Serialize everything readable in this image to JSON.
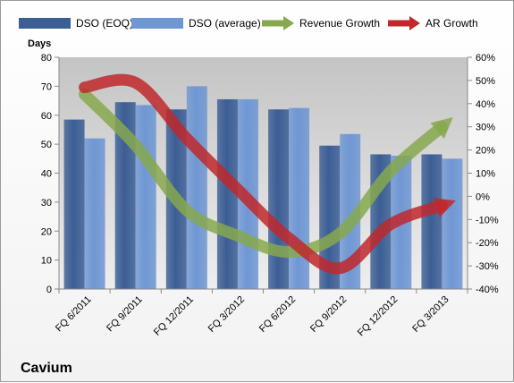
{
  "chart_data": {
    "type": "bar",
    "title": "Cavium",
    "ylabel": "Days",
    "ylim": [
      0,
      80
    ],
    "y_ticks": [
      "0",
      "10",
      "20",
      "30",
      "40",
      "50",
      "60",
      "70",
      "80"
    ],
    "y2lim": [
      -40,
      60
    ],
    "y2_ticks": [
      "-40%",
      "-30%",
      "-20%",
      "-10%",
      "0%",
      "10%",
      "20%",
      "30%",
      "40%",
      "50%",
      "60%"
    ],
    "categories": [
      "FQ 6/2011",
      "FQ 9/2011",
      "FQ 12/2011",
      "FQ 3/2012",
      "FQ 6/2012",
      "FQ 9/2012",
      "FQ 12/2012",
      "FQ 3/2013"
    ],
    "series": [
      {
        "name": "DSO (EOQ)",
        "type": "bar",
        "axis": "left",
        "color": "#3b5e95",
        "values": [
          58.5,
          64.5,
          62,
          65.5,
          62,
          49.5,
          46.5,
          46.5
        ]
      },
      {
        "name": "DSO (average)",
        "type": "bar",
        "axis": "left",
        "color": "#6f97d3",
        "values": [
          52,
          63.5,
          70,
          65.5,
          62.5,
          53.5,
          46,
          45
        ]
      },
      {
        "name": "Revenue Growth",
        "type": "line",
        "axis": "right",
        "color": "#86a84e",
        "values": [
          44,
          22,
          -6,
          -17,
          -24,
          -16,
          11,
          30
        ]
      },
      {
        "name": "AR Growth",
        "type": "line",
        "axis": "right",
        "color": "#c0282b",
        "values": [
          47,
          49,
          25,
          3,
          -18,
          -31,
          -12,
          -4
        ]
      }
    ],
    "legend_position": "top",
    "grid": false
  }
}
